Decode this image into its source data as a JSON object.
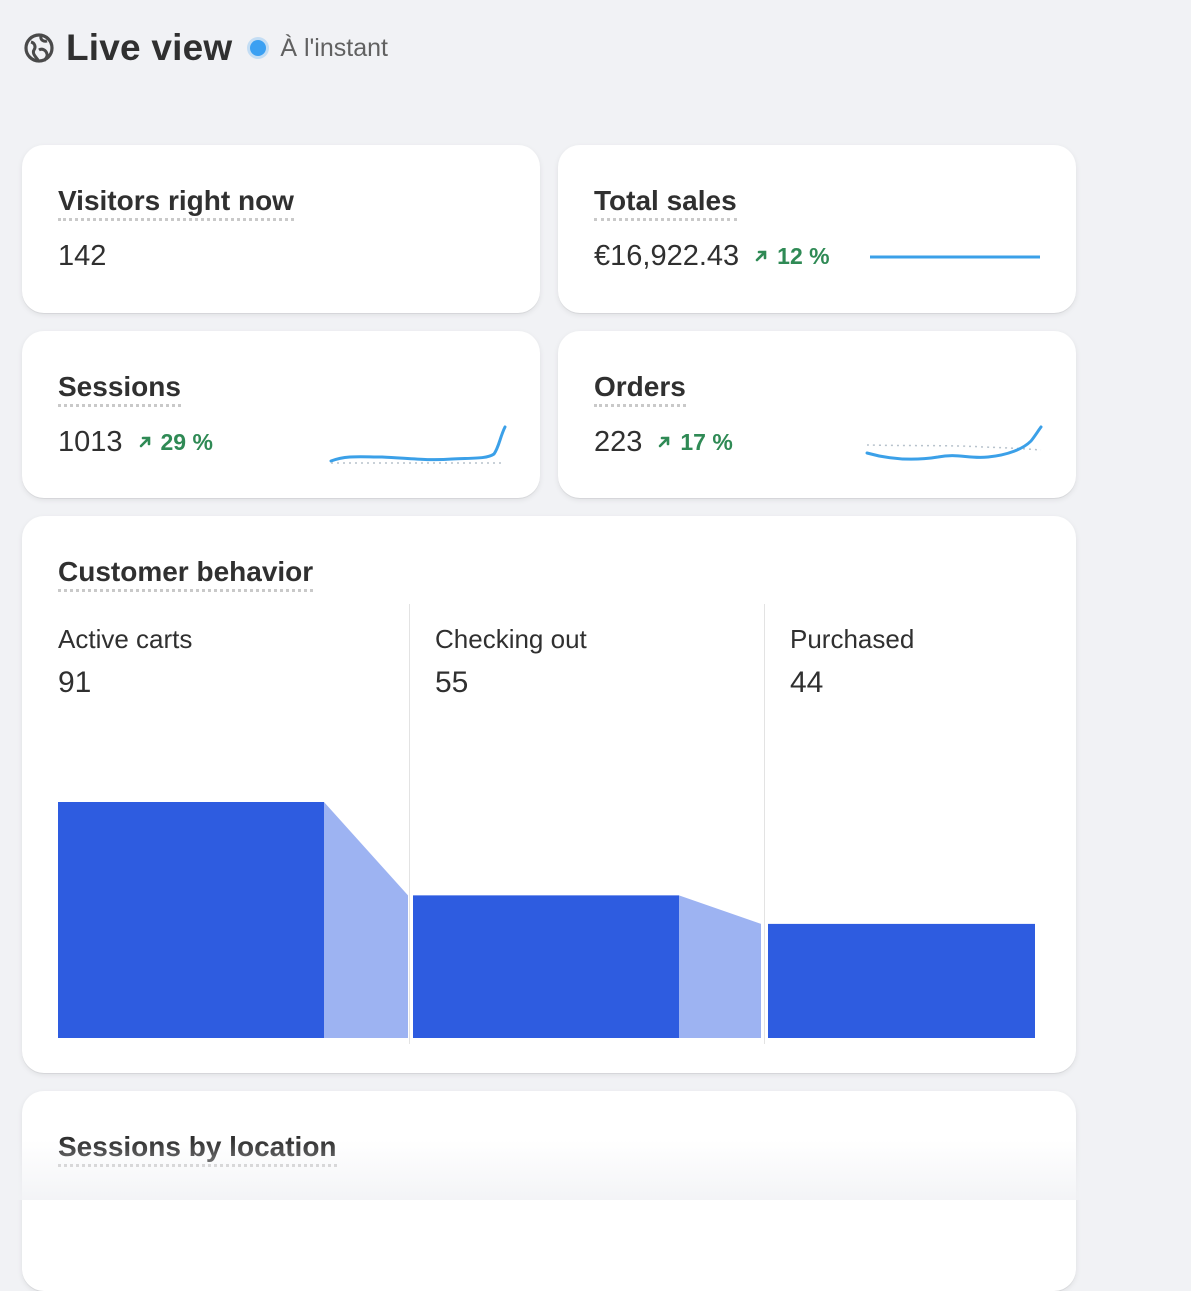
{
  "header": {
    "title": "Live view",
    "status": "À l'instant",
    "status_color": "#3ba0f2",
    "icon": "globe-icon"
  },
  "metrics": {
    "visitors": {
      "label": "Visitors right now",
      "value": "142"
    },
    "sales": {
      "label": "Total sales",
      "value": "€16,922.43",
      "trend": "12 %",
      "trend_direction": "up"
    },
    "sessions": {
      "label": "Sessions",
      "value": "1013",
      "trend": "29 %",
      "trend_direction": "up"
    },
    "orders": {
      "label": "Orders",
      "value": "223",
      "trend": "17 %",
      "trend_direction": "up"
    }
  },
  "customer_behavior": {
    "title": "Customer behavior",
    "stages": [
      {
        "label": "Active carts",
        "value": "91"
      },
      {
        "label": "Checking out",
        "value": "55"
      },
      {
        "label": "Purchased",
        "value": "44"
      }
    ]
  },
  "chart_data": {
    "type": "bar",
    "categories": [
      "Active carts",
      "Checking out",
      "Purchased"
    ],
    "values": [
      91,
      55,
      44
    ],
    "bar_color": "#2e5ce0",
    "connector_color": "#9db3f2"
  },
  "sessions_by_location": {
    "title": "Sessions by location"
  },
  "colors": {
    "accent": "#2e5ce0",
    "positive": "#2f8a55",
    "spark": "#3ba0e8"
  }
}
